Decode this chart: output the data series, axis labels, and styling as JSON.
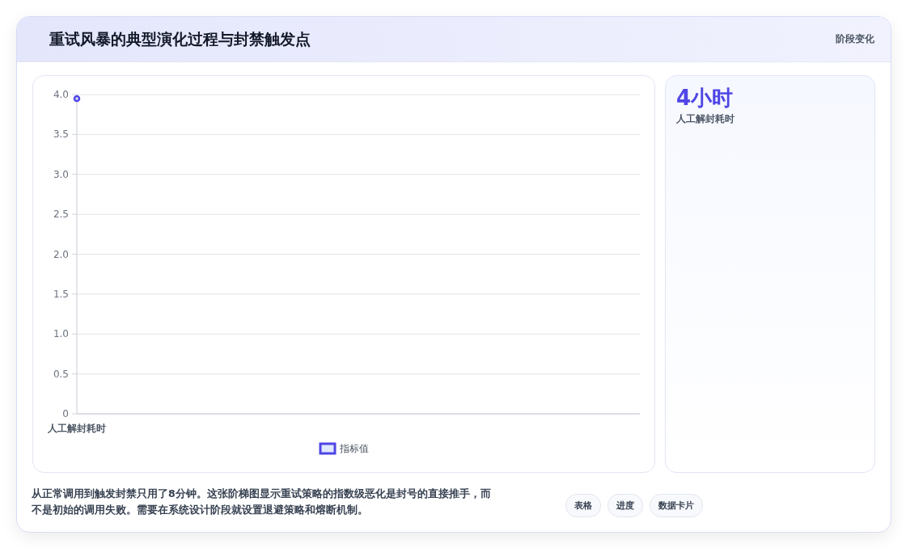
{
  "chart_data": [
    {
      "type": "step",
      "title": "重试风暴的典型演化过程与封禁触发点",
      "categories": [
        "人工解封耗时"
      ],
      "series": [
        {
          "name": "指标值",
          "color": "#4f46e5",
          "values": [
            3.95
          ]
        }
      ],
      "ylim": [
        0,
        4
      ],
      "yticks": [
        0,
        0.5,
        {
          "value": 1,
          "label": "1.0"
        },
        1.5,
        {
          "value": 2,
          "label": "2.0"
        },
        2.5,
        {
          "value": 3,
          "label": "3.0"
        },
        3.5,
        {
          "value": 4,
          "label": "4.0"
        }
      ],
      "grid": "y",
      "legend": "bottom",
      "marker": "circle",
      "annotations": [
        "从正常调用到触发封禁只用了8分钟。这张阶梯图显示重试策略的指数级恶化是封号的直接推手，而不是初始的调用失败。需要在系统设计阶段就设置退避策略和熔断机制。",
        "表格",
        "进度",
        "数据卡片"
      ]
    },
    {
      "type": "other",
      "title": "阶段变化",
      "annotations": [
        "4小时",
        "人工解封耗时"
      ]
    }
  ]
}
